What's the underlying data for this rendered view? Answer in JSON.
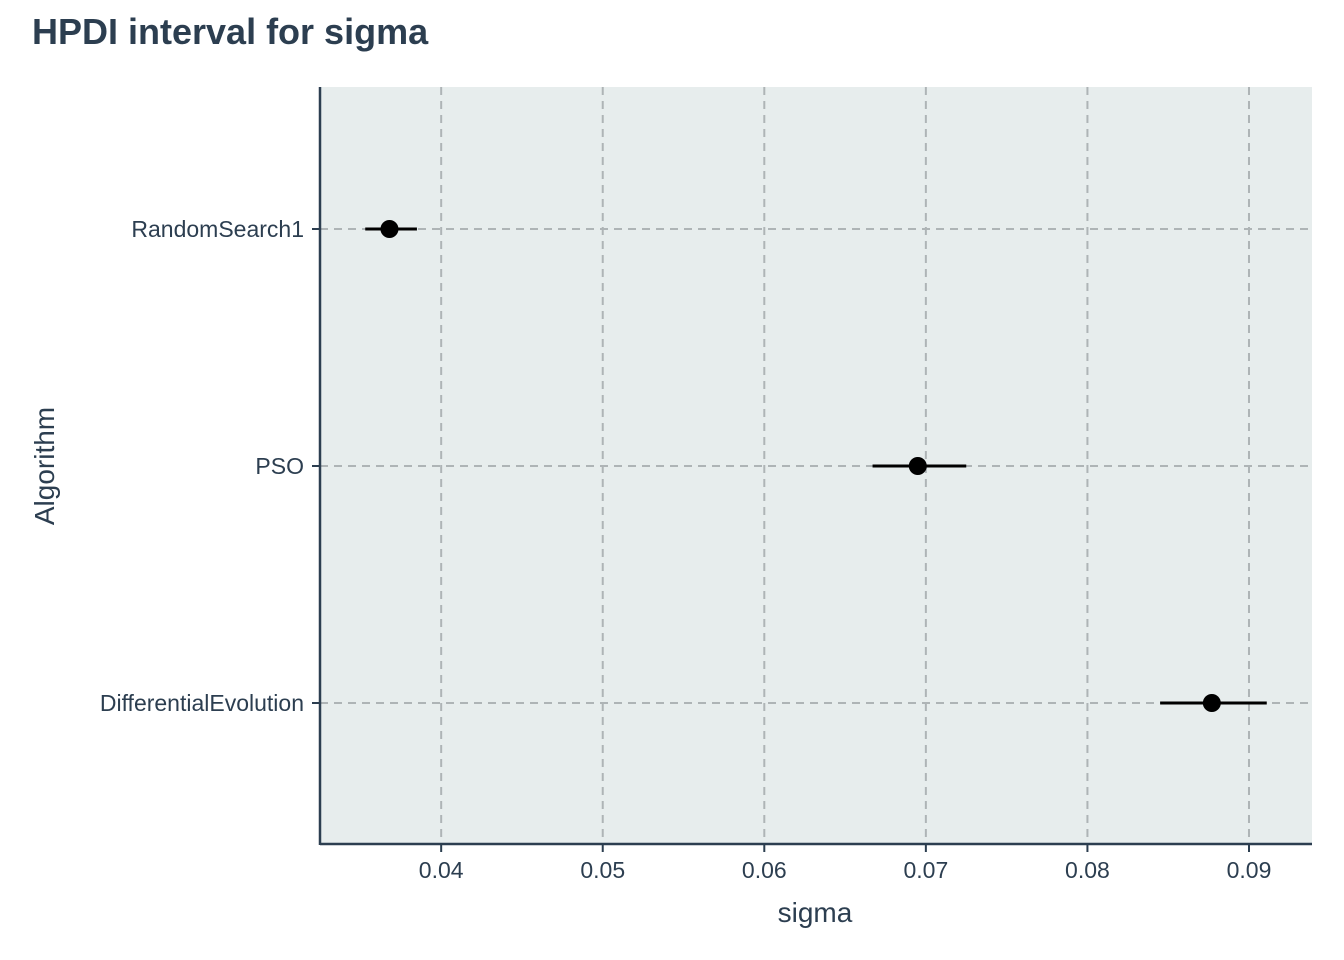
{
  "chart_data": {
    "type": "interval",
    "title": "HPDI interval for sigma",
    "xlabel": "sigma",
    "ylabel": "Algorithm",
    "xlim": [
      0.0325,
      0.0939
    ],
    "xticks": [
      0.04,
      0.05,
      0.06,
      0.07,
      0.08,
      0.09
    ],
    "xtick_labels": [
      "0.04",
      "0.05",
      "0.06",
      "0.07",
      "0.08",
      "0.09"
    ],
    "grid": true,
    "categories": [
      "RandomSearch1",
      "PSO",
      "DifferentialEvolution"
    ],
    "points": [
      {
        "category": "RandomSearch1",
        "value": 0.0368,
        "lower": 0.0353,
        "upper": 0.0385
      },
      {
        "category": "PSO",
        "value": 0.0695,
        "lower": 0.0667,
        "upper": 0.0725
      },
      {
        "category": "DifferentialEvolution",
        "value": 0.0877,
        "lower": 0.0845,
        "upper": 0.0911
      }
    ],
    "colors": {
      "panel": "#e7eded",
      "grid": "#aeb4b6",
      "axis": "#2c3e50",
      "mark": "#000000",
      "text": "#2c3e50"
    }
  }
}
